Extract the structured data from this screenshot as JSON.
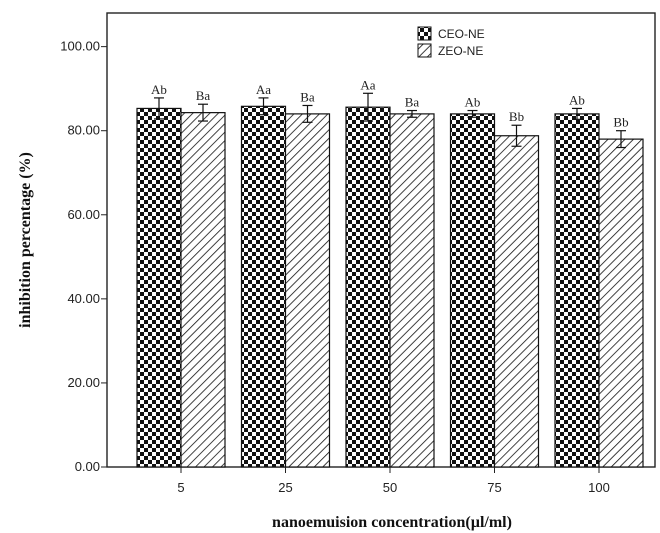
{
  "chart_data": {
    "type": "bar",
    "categories": [
      "5",
      "25",
      "50",
      "75",
      "100"
    ],
    "series": [
      {
        "name": "CEO-NE",
        "values": [
          85.3,
          85.8,
          85.6,
          84.0,
          84.0
        ],
        "errors": [
          2.5,
          2.0,
          3.3,
          0.8,
          1.3
        ],
        "labels": [
          "Ab",
          "Aa",
          "Aa",
          "Ab",
          "Ab"
        ]
      },
      {
        "name": "ZEO-NE",
        "values": [
          84.3,
          84.0,
          84.0,
          78.8,
          78.0
        ],
        "errors": [
          2.0,
          2.0,
          0.8,
          2.5,
          2.0
        ],
        "labels": [
          "Ba",
          "Ba",
          "Ba",
          "Bb",
          "Bb"
        ]
      }
    ],
    "yticks": [
      "0.00",
      "20.00",
      "40.00",
      "60.00",
      "80.00",
      "100.00"
    ],
    "ylim": [
      0,
      108
    ],
    "xlabel": "nanoemuision concentration(µl/ml)",
    "ylabel": "inhibition percentage (%)",
    "legend_position": "top-right",
    "grid": false
  }
}
